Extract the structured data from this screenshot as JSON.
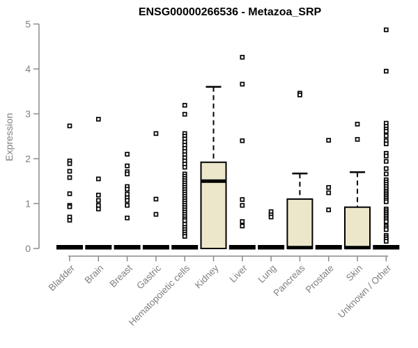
{
  "page": {
    "background": "#ffffff"
  },
  "chart_data": {
    "type": "boxplot",
    "title": "ENSG00000266536 - Metazoa_SRP",
    "ylabel": "Expression",
    "xlabel": "",
    "ylim": [
      0,
      5
    ],
    "yticks": [
      0,
      1,
      2,
      3,
      4,
      5
    ],
    "grid": false,
    "legend": "none",
    "axis_color": "#8a8a8a",
    "tick_label_color": "#7f7f7f",
    "title_color": "#000000",
    "box_fill": "#ece7cb",
    "box_stroke": "#000000",
    "point_fill": "#ffffff",
    "point_stroke": "#000000",
    "categories": [
      "Bladder",
      "Brain",
      "Breast",
      "Gastric",
      "Hematopoietic cells",
      "Kidney",
      "Liver",
      "Lung",
      "Pancreas",
      "Prostate",
      "Skin",
      "Unknown / Other"
    ],
    "series": [
      {
        "name": "Bladder",
        "q1": 0,
        "median": 0,
        "q3": 0,
        "whisker_low": 0,
        "whisker_high": 0,
        "outliers": [
          2.73,
          1.95,
          1.89,
          1.72,
          1.58,
          1.22,
          0.96,
          0.93,
          0.7,
          0.63
        ]
      },
      {
        "name": "Brain",
        "q1": 0,
        "median": 0,
        "q3": 0,
        "whisker_low": 0,
        "whisker_high": 0,
        "outliers": [
          2.88,
          1.55,
          1.19,
          1.07,
          0.96,
          0.88
        ]
      },
      {
        "name": "Breast",
        "q1": 0,
        "median": 0,
        "q3": 0,
        "whisker_low": 0,
        "whisker_high": 0,
        "outliers": [
          2.1,
          1.84,
          1.71,
          1.66,
          1.38,
          1.32,
          1.21,
          1.13,
          1.07,
          0.96,
          0.68
        ]
      },
      {
        "name": "Gastric",
        "q1": 0,
        "median": 0,
        "q3": 0,
        "whisker_low": 0,
        "whisker_high": 0,
        "outliers": [
          2.56,
          1.1,
          0.76
        ]
      },
      {
        "name": "Hematopoietic cells",
        "q1": 0,
        "median": 0,
        "q3": 0,
        "whisker_low": 0,
        "whisker_high": 0,
        "outliers": [
          3.19,
          2.99,
          2.56,
          2.5,
          2.44,
          2.37,
          2.3,
          2.23,
          2.16,
          2.09,
          2.02,
          1.95,
          1.88,
          1.81,
          1.66,
          1.61,
          1.56,
          1.51,
          1.46,
          1.41,
          1.36,
          1.31,
          1.26,
          1.21,
          1.16,
          1.11,
          1.06,
          1.01,
          0.96,
          0.91,
          0.86,
          0.81,
          0.76,
          0.71,
          0.66,
          0.62,
          0.54,
          0.47,
          0.42,
          0.37,
          0.32,
          0.27
        ]
      },
      {
        "name": "Kidney",
        "q1": 0,
        "median": 1.5,
        "q3": 1.92,
        "whisker_low": 0,
        "whisker_high": 3.6,
        "outliers": []
      },
      {
        "name": "Liver",
        "q1": 0,
        "median": 0,
        "q3": 0,
        "whisker_low": 0,
        "whisker_high": 0,
        "outliers": [
          4.26,
          3.66,
          2.4,
          1.09,
          0.96,
          0.6,
          0.5
        ]
      },
      {
        "name": "Lung",
        "q1": 0,
        "median": 0,
        "q3": 0,
        "whisker_low": 0,
        "whisker_high": 0,
        "outliers": [
          0.82,
          0.75,
          0.7
        ]
      },
      {
        "name": "Pancreas",
        "q1": 0,
        "median": 0.02,
        "q3": 1.1,
        "whisker_low": 0,
        "whisker_high": 1.67,
        "outliers": [
          3.46,
          3.42
        ]
      },
      {
        "name": "Prostate",
        "q1": 0,
        "median": 0,
        "q3": 0,
        "whisker_low": 0,
        "whisker_high": 0,
        "outliers": [
          2.41,
          1.36,
          1.24,
          0.86
        ]
      },
      {
        "name": "Skin",
        "q1": 0,
        "median": 0.02,
        "q3": 0.92,
        "whisker_low": 0,
        "whisker_high": 1.7,
        "outliers": [
          2.77,
          2.43
        ]
      },
      {
        "name": "Unknown / Other",
        "q1": 0,
        "median": 0,
        "q3": 0,
        "whisker_low": 0,
        "whisker_high": 0,
        "outliers": [
          4.87,
          3.95,
          2.79,
          2.72,
          2.66,
          2.61,
          2.51,
          2.4,
          2.33,
          2.12,
          2.06,
          1.94,
          1.78,
          1.66,
          1.53,
          1.48,
          1.43,
          1.38,
          1.33,
          1.28,
          1.24,
          1.2,
          1.16,
          1.12,
          1.08,
          1.04,
          0.88,
          0.84,
          0.8,
          0.76,
          0.72,
          0.68,
          0.64,
          0.6,
          0.5,
          0.46,
          0.42,
          0.29,
          0.25,
          0.21,
          0.16
        ]
      }
    ]
  }
}
